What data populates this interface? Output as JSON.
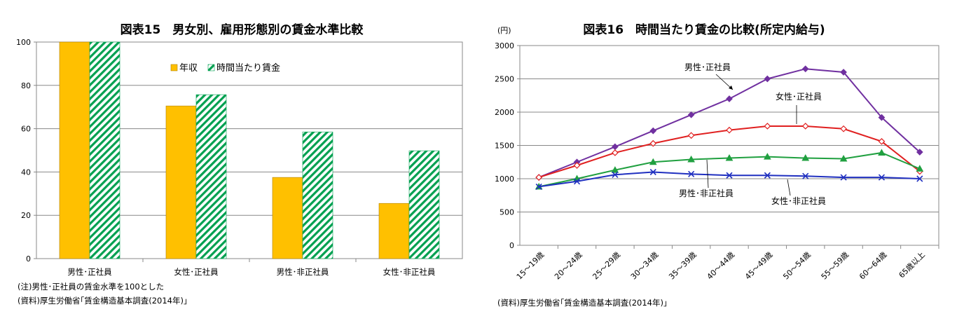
{
  "chart_data": [
    {
      "type": "bar",
      "title": "図表15　男女別、雇用形態別の賃金水準比較",
      "categories": [
        "男性･正社員",
        "女性･正社員",
        "男性･非正社員",
        "女性･非正社員"
      ],
      "series": [
        {
          "name": "年収",
          "values": [
            100,
            70.5,
            37.5,
            25.5
          ],
          "color": "#FFC000",
          "pattern": "solid"
        },
        {
          "name": "時間当たり賃金",
          "values": [
            100,
            75.7,
            58.5,
            49.8
          ],
          "color": "#00A050",
          "pattern": "diagonal-hatch"
        }
      ],
      "ylim": [
        0,
        100
      ],
      "yticks": [
        "0",
        "20",
        "40",
        "60",
        "80",
        "100"
      ],
      "grid": true,
      "legend_position": "top-right",
      "notes": [
        "(注)男性･正社員の賃金水準を100とした",
        "(資料)厚生労働省｢賃金構造基本調査(2014年)｣"
      ]
    },
    {
      "type": "line",
      "title": "図表16　時間当たり賃金の比較(所定内給与)",
      "yunit": "(円)",
      "categories": [
        "15～19歳",
        "20～24歳",
        "25～29歳",
        "30～34歳",
        "35～39歳",
        "40～44歳",
        "45～49歳",
        "50～54歳",
        "55～59歳",
        "60～64歳",
        "65歳以上"
      ],
      "series": [
        {
          "name": "男性･正社員",
          "color": "#7030A0",
          "marker": "diamond",
          "values": [
            1020,
            1250,
            1480,
            1720,
            1960,
            2200,
            2500,
            2650,
            2600,
            1920,
            1400
          ]
        },
        {
          "name": "女性･正社員",
          "color": "#E02020",
          "marker": "diamond-open",
          "values": [
            1020,
            1200,
            1390,
            1530,
            1650,
            1730,
            1790,
            1790,
            1750,
            1560,
            1110
          ]
        },
        {
          "name": "男性･非正社員",
          "color": "#20A040",
          "marker": "triangle",
          "values": [
            880,
            1000,
            1130,
            1250,
            1290,
            1310,
            1330,
            1310,
            1300,
            1390,
            1150
          ]
        },
        {
          "name": "女性･非正社員",
          "color": "#2030C0",
          "marker": "x",
          "values": [
            880,
            960,
            1060,
            1100,
            1070,
            1050,
            1050,
            1040,
            1020,
            1020,
            1000
          ]
        }
      ],
      "ylim": [
        0,
        3000
      ],
      "yticks": [
        "0",
        "500",
        "1000",
        "1500",
        "2000",
        "2500",
        "3000"
      ],
      "grid": true,
      "legend_position": "inline-labels",
      "notes": [
        "(資料)厚生労働省｢賃金構造基本調査(2014年)｣"
      ]
    }
  ]
}
